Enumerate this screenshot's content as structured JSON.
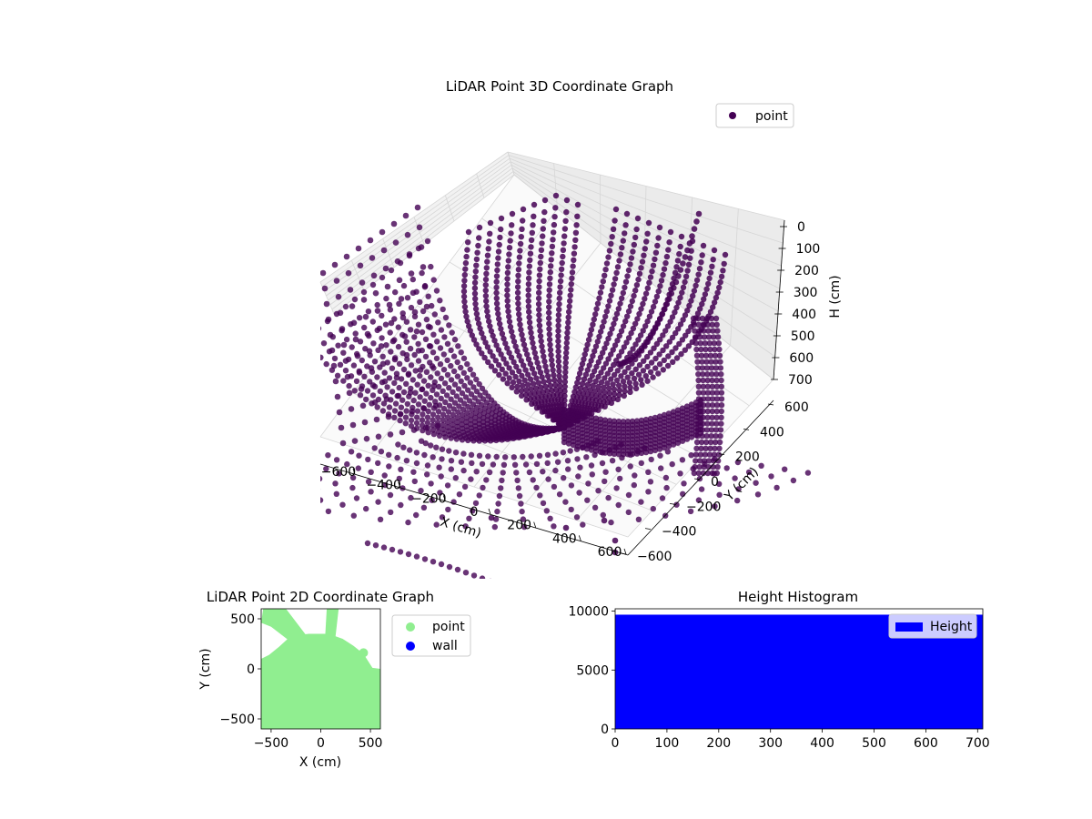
{
  "chart_data": [
    {
      "type": "scatter",
      "projection": "3d",
      "title": "LiDAR Point 3D Coordinate Graph",
      "xlabel": "X (cm)",
      "ylabel": "Y (cm)",
      "zlabel": "H (cm)",
      "xlim": [
        -700,
        650
      ],
      "ylim": [
        -650,
        650
      ],
      "zlim": [
        700,
        0
      ],
      "x_ticks": [
        -600,
        -400,
        -200,
        0,
        200,
        400,
        600
      ],
      "y_ticks": [
        -600,
        -400,
        -200,
        0,
        200,
        400,
        600
      ],
      "z_ticks": [
        0,
        100,
        200,
        300,
        400,
        500,
        600,
        700
      ],
      "x_tick_labels": [
        "−600",
        "−400",
        "−200",
        "0",
        "200",
        "400",
        "600"
      ],
      "y_tick_labels": [
        "−600",
        "−400",
        "−200",
        "0",
        "200",
        "400",
        "600"
      ],
      "z_tick_labels": [
        "0",
        "100",
        "200",
        "300",
        "400",
        "500",
        "600",
        "700"
      ],
      "legend": {
        "placement": "upper right",
        "entries": [
          "point"
        ]
      },
      "grid": true,
      "series": [
        {
          "name": "point",
          "color": "#440154"
        }
      ]
    },
    {
      "type": "scatter",
      "title": "LiDAR Point 2D Coordinate Graph",
      "xlabel": "X (cm)",
      "ylabel": "Y (cm)",
      "xlim": [
        -600,
        600
      ],
      "ylim": [
        -600,
        600
      ],
      "x_ticks": [
        -500,
        0,
        500
      ],
      "y_ticks": [
        -500,
        0,
        500
      ],
      "x_tick_labels": [
        "−500",
        "0",
        "500"
      ],
      "y_tick_labels": [
        "−500",
        "0",
        "500"
      ],
      "legend": {
        "placement": "outside right",
        "entries": [
          "point",
          "wall"
        ]
      },
      "series": [
        {
          "name": "point",
          "color": "#90ee90"
        },
        {
          "name": "wall",
          "color": "#0000ff"
        }
      ]
    },
    {
      "type": "bar",
      "subtype": "histogram",
      "title": "Height Histogram",
      "xlim": [
        0,
        710
      ],
      "ylim": [
        0,
        10200
      ],
      "x_ticks": [
        0,
        100,
        200,
        300,
        400,
        500,
        600,
        700
      ],
      "y_ticks": [
        0,
        5000,
        10000
      ],
      "x_tick_labels": [
        "0",
        "100",
        "200",
        "300",
        "400",
        "500",
        "600",
        "700"
      ],
      "y_tick_labels": [
        "0",
        "5000",
        "10000"
      ],
      "bin_range": [
        0,
        710
      ],
      "bin_count_approx": 9700,
      "legend": {
        "placement": "upper right",
        "entries": [
          "Height"
        ]
      },
      "series": [
        {
          "name": "Height",
          "color": "#0000ff"
        }
      ]
    }
  ]
}
